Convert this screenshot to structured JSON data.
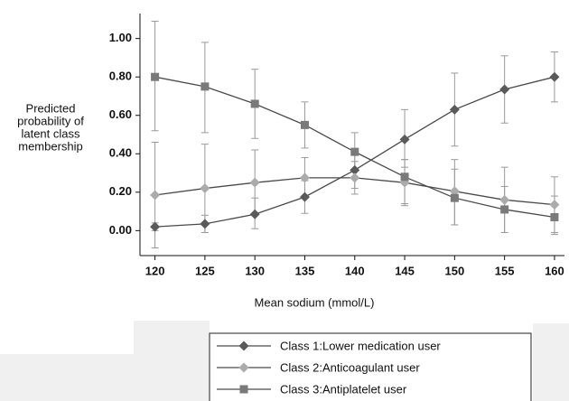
{
  "chart_data": {
    "type": "line",
    "ylabel": [
      "Predicted",
      "probability of",
      "latent class",
      "membership"
    ],
    "xlabel": "Mean sodium (mmol/L)",
    "x": [
      120,
      125,
      130,
      135,
      140,
      145,
      150,
      155,
      160
    ],
    "xlim": [
      118.5,
      161
    ],
    "xticks": [
      120,
      125,
      130,
      135,
      140,
      145,
      150,
      155,
      160
    ],
    "ylim": [
      -0.13,
      1.13
    ],
    "yticks": [
      {
        "value": 0,
        "label": "0.00"
      },
      {
        "value": 0.2,
        "label": "0.20"
      },
      {
        "value": 0.4,
        "label": "0.40"
      },
      {
        "value": 0.6,
        "label": "0.60"
      },
      {
        "value": 0.8,
        "label": "0.80"
      },
      {
        "value": 1,
        "label": "1.00"
      }
    ],
    "line_color": "#4a4a4a",
    "error_color": "#9a9a9a",
    "series": [
      {
        "name": "Class 1:Lower medication user",
        "color": "#5a5a5a",
        "marker": "diamond",
        "values": [
          0.02,
          0.035,
          0.085,
          0.175,
          0.315,
          0.475,
          0.63,
          0.735,
          0.8
        ],
        "ci_low": [
          0.0,
          -0.01,
          0.01,
          0.09,
          0.22,
          0.33,
          0.44,
          0.56,
          0.67
        ],
        "ci_high": [
          0.04,
          0.08,
          0.17,
          0.26,
          0.41,
          0.63,
          0.82,
          0.91,
          0.93
        ]
      },
      {
        "name": "Class 2:Anticoagulant user",
        "color": "#ababab",
        "marker": "diamond",
        "values": [
          0.185,
          0.22,
          0.25,
          0.275,
          0.275,
          0.25,
          0.205,
          0.16,
          0.135
        ],
        "ci_low": [
          -0.09,
          -0.01,
          0.09,
          0.17,
          0.19,
          0.13,
          0.03,
          -0.01,
          -0.01
        ],
        "ci_high": [
          0.46,
          0.45,
          0.42,
          0.38,
          0.36,
          0.37,
          0.37,
          0.33,
          0.28
        ]
      },
      {
        "name": "Class 3:Antiplatelet user",
        "color": "#7a7a7a",
        "marker": "square",
        "values": [
          0.8,
          0.75,
          0.66,
          0.55,
          0.41,
          0.28,
          0.17,
          0.11,
          0.07
        ],
        "ci_low": [
          0.52,
          0.51,
          0.48,
          0.43,
          0.32,
          0.14,
          0.03,
          -0.01,
          -0.02
        ],
        "ci_high": [
          1.09,
          0.98,
          0.84,
          0.67,
          0.51,
          0.37,
          0.32,
          0.23,
          0.18
        ]
      }
    ]
  }
}
